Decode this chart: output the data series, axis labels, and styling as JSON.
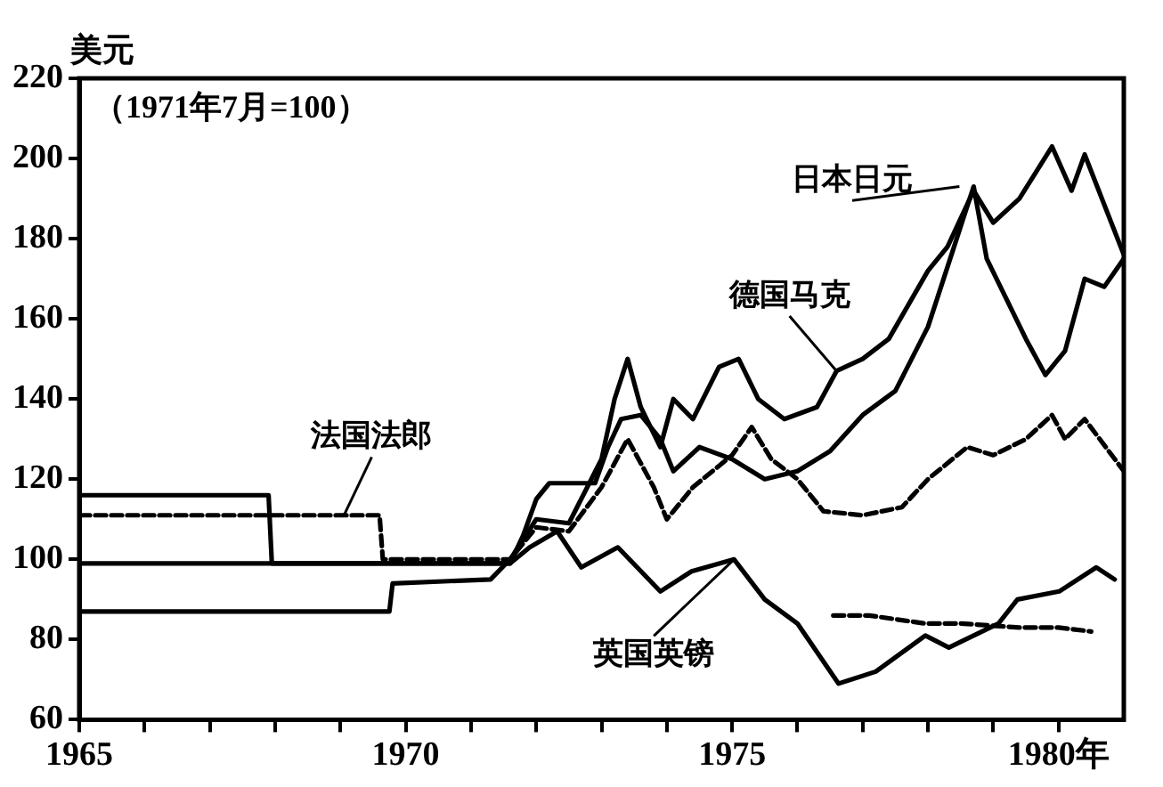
{
  "chart_data": {
    "type": "line",
    "ylabel": "美元",
    "subtitle": "（1971年7月=100）",
    "xlim": [
      1965,
      1981
    ],
    "xticks": [
      1965,
      {
        "value": 1966,
        "label": null
      },
      {
        "value": 1967,
        "label": null
      },
      {
        "value": 1968,
        "label": null
      },
      {
        "value": 1969,
        "label": null
      },
      1970,
      {
        "value": 1971,
        "label": null
      },
      {
        "value": 1972,
        "label": null
      },
      {
        "value": 1973,
        "label": null
      },
      {
        "value": 1974,
        "label": null
      },
      1975,
      {
        "value": 1976,
        "label": null
      },
      {
        "value": 1977,
        "label": null
      },
      {
        "value": 1978,
        "label": null
      },
      {
        "value": 1979,
        "label": null
      },
      {
        "value": 1980,
        "label": "1980年"
      }
    ],
    "ylim": [
      60,
      220
    ],
    "yticks": [
      60,
      80,
      100,
      120,
      140,
      160,
      180,
      200,
      220
    ],
    "grid": false,
    "legend": false,
    "marker": "none",
    "series": [
      {
        "name": "日本日元",
        "color": "#000000",
        "line_style": "solid",
        "x": [
          1965,
          1971.6,
          1971.8,
          1972.0,
          1972.2,
          1972.9,
          1973.1,
          1973.3,
          1973.6,
          1973.9,
          1974.1,
          1974.5,
          1975.0,
          1975.5,
          1976.0,
          1976.5,
          1977.0,
          1977.5,
          1978.0,
          1978.4,
          1978.7,
          1978.9,
          1979.2,
          1979.5,
          1979.8,
          1980.1,
          1980.4,
          1980.7,
          1981.0
        ],
        "values": [
          99,
          99,
          106,
          115,
          119,
          119,
          128,
          135,
          136,
          130,
          122,
          128,
          125,
          120,
          122,
          127,
          136,
          142,
          158,
          178,
          193,
          175,
          165,
          155,
          146,
          152,
          170,
          168,
          175
        ]
      },
      {
        "name": "德国马克",
        "color": "#000000",
        "line_style": "solid",
        "x": [
          1965,
          1969.75,
          1969.8,
          1971.3,
          1971.6,
          1972.0,
          1972.5,
          1973.0,
          1973.2,
          1973.4,
          1973.6,
          1973.9,
          1974.1,
          1974.4,
          1974.8,
          1975.1,
          1975.4,
          1975.8,
          1976.3,
          1976.6,
          1977.0,
          1977.4,
          1978.0,
          1978.3,
          1978.7,
          1979.0,
          1979.4,
          1979.9,
          1980.2,
          1980.4,
          1981.0
        ],
        "values": [
          87,
          87,
          94,
          95,
          100,
          110,
          109,
          125,
          140,
          150,
          138,
          128,
          140,
          135,
          148,
          150,
          140,
          135,
          138,
          147,
          150,
          155,
          172,
          178,
          192,
          184,
          190,
          203,
          192,
          201,
          176
        ]
      },
      {
        "name": "法国法郎",
        "color": "#000000",
        "line_style": "dashed",
        "x": [
          1965,
          1969.6,
          1969.65,
          1971.6,
          1972.0,
          1972.5,
          1973.0,
          1973.4,
          1973.8,
          1974.0,
          1974.4,
          1975.0,
          1975.3,
          1975.6,
          1976.0,
          1976.4,
          1977.0,
          1977.6,
          1978.0,
          1978.6,
          1979.0,
          1979.5,
          1979.9,
          1980.1,
          1980.4,
          1981.0
        ],
        "values": [
          111,
          111,
          100,
          100,
          108,
          107,
          118,
          130,
          118,
          110,
          118,
          126,
          133,
          125,
          120,
          112,
          111,
          113,
          120,
          128,
          126,
          130,
          136,
          130,
          135,
          122
        ]
      },
      {
        "name": "英国英镑",
        "color": "#000000",
        "line_style": "solid",
        "x": [
          1965,
          1967.9,
          1967.95,
          1971.6,
          1971.9,
          1972.32,
          1972.69,
          1973.25,
          1973.9,
          1974.38,
          1975.03,
          1975.5,
          1976.0,
          1976.63,
          1977.2,
          1977.96,
          1978.32,
          1979.08,
          1979.37,
          1980.01,
          1980.58,
          1980.86
        ],
        "values": [
          116,
          116,
          99,
          99,
          103,
          107,
          98,
          103,
          92,
          97,
          100,
          90,
          84,
          69,
          72,
          81,
          78,
          84,
          90,
          92,
          98,
          95
        ]
      },
      {
        "color": "#000000",
        "line_style": "dashed",
        "x": [
          1976.55,
          1977.1,
          1977.96,
          1978.5,
          1979.4,
          1980.0,
          1980.5
        ],
        "values": [
          86,
          86,
          84,
          84,
          83,
          83,
          82
        ]
      }
    ]
  }
}
